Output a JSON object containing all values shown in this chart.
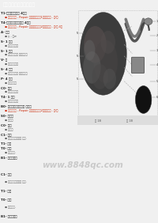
{
  "title": "图组一组：二次空气系统",
  "bg_color": "#f0f0f0",
  "title_bg": "#404040",
  "title_color": "#ffffff",
  "left_lines": [
    {
      "text": "T1-二次空气喷射阀 4个孔",
      "bold": true,
      "color": "#222222",
      "red": false,
      "indent": 0
    },
    {
      "text": "● 连接器颜色 - Repair 组别颜色显示，1对厂商颜色 - 红/紫",
      "bold": false,
      "color": "#cc2200",
      "red": true,
      "indent": 1
    },
    {
      "text": "T4-二次空气管路电磁阀 4个孔",
      "bold": true,
      "color": "#222222",
      "red": false,
      "indent": 0
    },
    {
      "text": "● 连接器颜色 - Repair 组别颜色显示，2对厂商颜色 - 绿/白 4个",
      "bold": false,
      "color": "#cc2200",
      "red": true,
      "indent": 1
    },
    {
      "text": "A- 电瓶",
      "bold": true,
      "color": "#222222",
      "red": false,
      "indent": 0
    },
    {
      "text": "● y - 电w",
      "bold": false,
      "color": "#555555",
      "red": false,
      "indent": 1
    },
    {
      "text": "S- 1 蓄电",
      "bold": true,
      "color": "#222222",
      "red": false,
      "indent": 0
    },
    {
      "text": "● 电源线组织线",
      "bold": false,
      "color": "#555555",
      "red": false,
      "indent": 1
    },
    {
      "text": "S- 1 蓄电",
      "bold": true,
      "color": "#222222",
      "red": false,
      "indent": 0
    },
    {
      "text": "● 电源线路组织 电源线组织",
      "bold": false,
      "color": "#555555",
      "red": false,
      "indent": 1
    },
    {
      "text": "V- 管",
      "bold": true,
      "color": "#222222",
      "red": false,
      "indent": 0
    },
    {
      "text": "● 帮助工程门序",
      "bold": false,
      "color": "#555555",
      "red": false,
      "indent": 1
    },
    {
      "text": "S- 4 蓄电",
      "bold": true,
      "color": "#222222",
      "red": false,
      "indent": 0
    },
    {
      "text": "● 电源线组织线 电源线组织",
      "bold": false,
      "color": "#555555",
      "red": false,
      "indent": 1
    },
    {
      "text": "P- 4 蓄电",
      "bold": true,
      "color": "#222222",
      "red": false,
      "indent": 0
    },
    {
      "text": "● 电源线组织",
      "bold": false,
      "color": "#555555",
      "red": false,
      "indent": 1
    },
    {
      "text": "C0- 蓄电",
      "bold": true,
      "color": "#222222",
      "red": false,
      "indent": 0
    },
    {
      "text": "● 帮助工程门序",
      "bold": false,
      "color": "#555555",
      "red": false,
      "indent": 1
    },
    {
      "text": "T4- 1 蓄电",
      "bold": true,
      "color": "#222222",
      "red": false,
      "indent": 0
    },
    {
      "text": "● 电源线组织线",
      "bold": false,
      "color": "#555555",
      "red": false,
      "indent": 1
    },
    {
      "text": "B0- 二次空气管路电磁阀 电源线",
      "bold": true,
      "color": "#222222",
      "red": false,
      "indent": 0
    },
    {
      "text": "● 连接器颜色 - Repair 组别颜色显示，2对厂商颜色 - 蓝/红",
      "bold": false,
      "color": "#cc2200",
      "red": true,
      "indent": 1
    },
    {
      "text": "S0- 蓄电线",
      "bold": true,
      "color": "#222222",
      "red": false,
      "indent": 0
    },
    {
      "text": "● 电源线",
      "bold": false,
      "color": "#555555",
      "red": false,
      "indent": 1
    },
    {
      "text": "C0- 蓄电",
      "bold": true,
      "color": "#222222",
      "red": false,
      "indent": 0
    },
    {
      "text": "● 电源线",
      "bold": false,
      "color": "#555555",
      "red": false,
      "indent": 1
    },
    {
      "text": "C1- 蓄电",
      "bold": true,
      "color": "#222222",
      "red": false,
      "indent": 0
    },
    {
      "text": "● 帮助工程组织线对 等价.",
      "bold": false,
      "color": "#555555",
      "red": false,
      "indent": 1
    },
    {
      "text": "T1- 接管",
      "bold": true,
      "color": "#222222",
      "red": false,
      "indent": 0
    },
    {
      "text": "T0- 蓄电",
      "bold": true,
      "color": "#222222",
      "red": false,
      "indent": 0
    },
    {
      "text": "● 电源线组.",
      "bold": false,
      "color": "#555555",
      "red": false,
      "indent": 1
    },
    {
      "text": "B1- 蓄电电源线",
      "bold": true,
      "color": "#222222",
      "red": false,
      "indent": 0
    }
  ],
  "watermark": "www.8848qc.com",
  "watermark_color": "#aaaaaa",
  "diagram_border_color": "#aaaaaa",
  "diagram_bg": "#ffffff"
}
